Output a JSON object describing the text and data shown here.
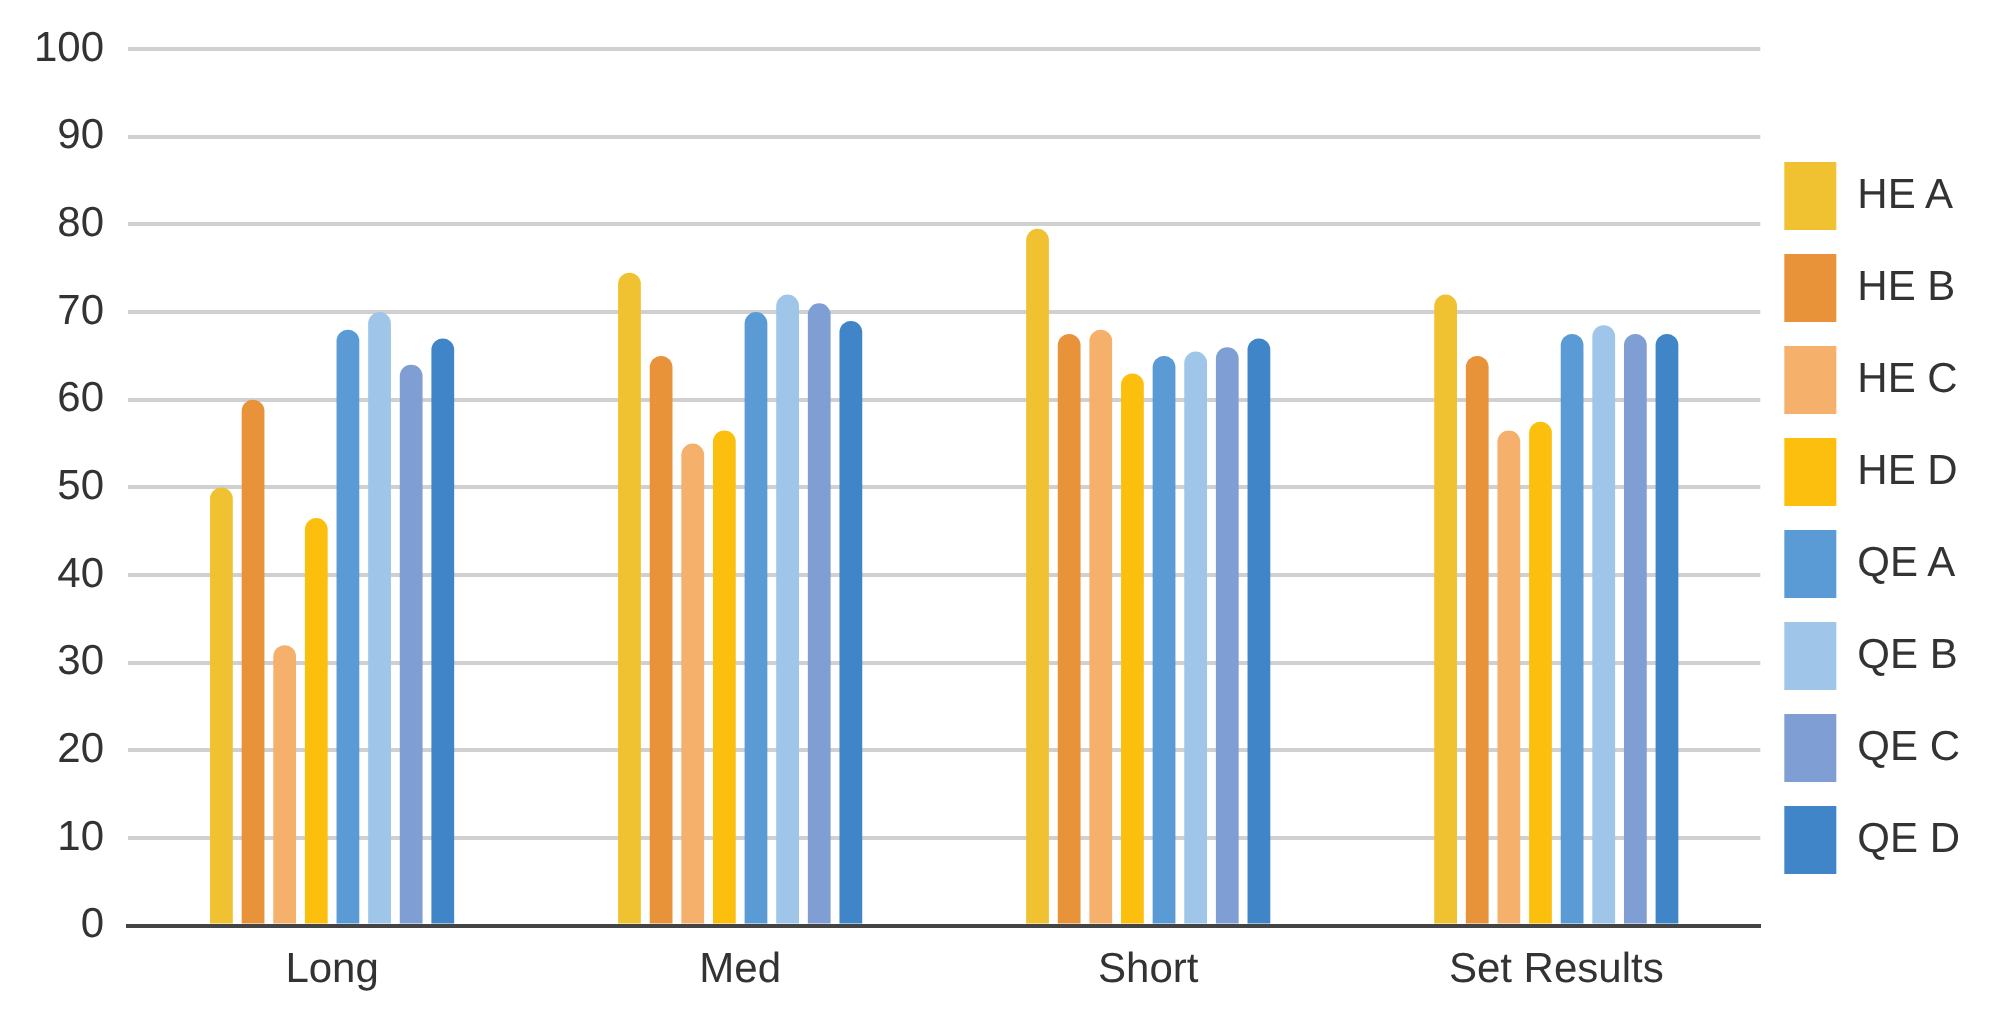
{
  "chart_data": {
    "type": "bar",
    "categories": [
      "Long",
      "Med",
      "Short",
      "Set Results"
    ],
    "series": [
      {
        "name": "HE A",
        "color": "#f0c232",
        "values": [
          50,
          74.5,
          79.5,
          72
        ]
      },
      {
        "name": "HE B",
        "color": "#e8923a",
        "values": [
          60,
          65,
          67.5,
          65
        ]
      },
      {
        "name": "HE C",
        "color": "#f5b06b",
        "values": [
          32,
          55,
          68,
          56.5
        ]
      },
      {
        "name": "HE D",
        "color": "#fdbf0d",
        "values": [
          46.5,
          56.5,
          63,
          57.5
        ]
      },
      {
        "name": "QE A",
        "color": "#5b9bd5",
        "values": [
          68,
          70,
          65,
          67.5
        ]
      },
      {
        "name": "QE B",
        "color": "#9fc5e8",
        "values": [
          70,
          72,
          65.5,
          68.5
        ]
      },
      {
        "name": "QE C",
        "color": "#7f9ed4",
        "values": [
          64,
          71,
          66,
          67.5
        ]
      },
      {
        "name": "QE D",
        "color": "#3f85c8",
        "values": [
          67,
          69,
          67,
          67.5
        ]
      }
    ],
    "ylim": [
      0,
      100
    ],
    "yticks": [
      0,
      10,
      20,
      30,
      40,
      50,
      60,
      70,
      80,
      90,
      100
    ],
    "grid": "y",
    "legend": "right"
  }
}
